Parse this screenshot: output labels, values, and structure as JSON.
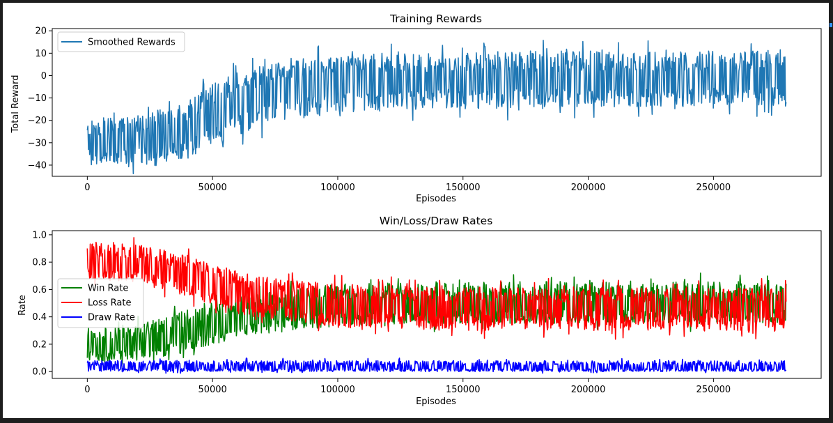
{
  "chart_data": [
    {
      "type": "line",
      "title": "Training Rewards",
      "xlabel": "Episodes",
      "ylabel": "Total Reward",
      "xlim": [
        -14000,
        293000
      ],
      "ylim": [
        -45,
        21
      ],
      "xticks": [
        0,
        50000,
        100000,
        150000,
        200000,
        250000
      ],
      "xtick_labels": [
        "0",
        "50000",
        "100000",
        "150000",
        "200000",
        "250000"
      ],
      "yticks": [
        -40,
        -30,
        -20,
        -10,
        0,
        10,
        20
      ],
      "ytick_labels": [
        "−40",
        "−30",
        "−20",
        "−10",
        "0",
        "10",
        "20"
      ],
      "grid": false,
      "legend": "upper-left",
      "series": [
        {
          "name": "Smoothed Rewards",
          "color": "#1f77b4",
          "x": [
            0,
            20000,
            40000,
            60000,
            80000,
            100000,
            120000,
            140000,
            160000,
            180000,
            200000,
            220000,
            240000,
            260000,
            279000
          ],
          "mean": [
            -30,
            -29,
            -25,
            -13,
            -6,
            -3,
            -3,
            -2.5,
            -2,
            -2,
            -2,
            -2,
            -2,
            -2,
            -2
          ],
          "band_low": [
            -40,
            -40,
            -37,
            -27,
            -20,
            -17,
            -16,
            -15,
            -15,
            -15,
            -14,
            -14,
            -14,
            -14,
            -13
          ],
          "band_high": [
            -19,
            -18,
            -10,
            2,
            7,
            9,
            11,
            10,
            11,
            11,
            11,
            11,
            11,
            11,
            11
          ]
        }
      ]
    },
    {
      "type": "line",
      "title": "Win/Loss/Draw Rates",
      "xlabel": "Episodes",
      "ylabel": "Rate",
      "xlim": [
        -14000,
        293000
      ],
      "ylim": [
        -0.05,
        1.03
      ],
      "xticks": [
        0,
        50000,
        100000,
        150000,
        200000,
        250000
      ],
      "xtick_labels": [
        "0",
        "50000",
        "100000",
        "150000",
        "200000",
        "250000"
      ],
      "yticks": [
        0.0,
        0.2,
        0.4,
        0.6,
        0.8,
        1.0
      ],
      "ytick_labels": [
        "0.0",
        "0.2",
        "0.4",
        "0.6",
        "0.8",
        "1.0"
      ],
      "grid": false,
      "legend": "center-left",
      "series": [
        {
          "name": "Win Rate",
          "color": "#008000",
          "x": [
            0,
            20000,
            40000,
            60000,
            80000,
            100000,
            120000,
            140000,
            160000,
            180000,
            200000,
            220000,
            240000,
            260000,
            279000
          ],
          "mean": [
            0.18,
            0.2,
            0.28,
            0.38,
            0.44,
            0.48,
            0.49,
            0.5,
            0.5,
            0.5,
            0.5,
            0.5,
            0.5,
            0.5,
            0.5
          ],
          "band_low": [
            0.06,
            0.08,
            0.14,
            0.25,
            0.3,
            0.33,
            0.34,
            0.35,
            0.35,
            0.35,
            0.35,
            0.35,
            0.35,
            0.35,
            0.35
          ],
          "band_high": [
            0.32,
            0.35,
            0.45,
            0.55,
            0.6,
            0.64,
            0.65,
            0.66,
            0.66,
            0.66,
            0.66,
            0.66,
            0.66,
            0.66,
            0.66
          ]
        },
        {
          "name": "Loss Rate",
          "color": "#ff0000",
          "x": [
            0,
            20000,
            40000,
            60000,
            80000,
            100000,
            120000,
            140000,
            160000,
            180000,
            200000,
            220000,
            240000,
            260000,
            279000
          ],
          "mean": [
            0.8,
            0.78,
            0.7,
            0.58,
            0.52,
            0.48,
            0.47,
            0.46,
            0.46,
            0.46,
            0.46,
            0.46,
            0.46,
            0.46,
            0.46
          ],
          "band_low": [
            0.68,
            0.65,
            0.55,
            0.42,
            0.36,
            0.32,
            0.31,
            0.3,
            0.3,
            0.3,
            0.3,
            0.3,
            0.3,
            0.3,
            0.3
          ],
          "band_high": [
            0.95,
            0.93,
            0.86,
            0.73,
            0.67,
            0.64,
            0.63,
            0.62,
            0.62,
            0.62,
            0.62,
            0.62,
            0.62,
            0.62,
            0.62
          ]
        },
        {
          "name": "Draw Rate",
          "color": "#0000ff",
          "x": [
            0,
            20000,
            40000,
            60000,
            80000,
            100000,
            120000,
            140000,
            160000,
            180000,
            200000,
            220000,
            240000,
            260000,
            279000
          ],
          "mean": [
            0.03,
            0.03,
            0.03,
            0.03,
            0.03,
            0.03,
            0.03,
            0.03,
            0.03,
            0.03,
            0.03,
            0.03,
            0.03,
            0.03,
            0.03
          ],
          "band_low": [
            0.0,
            0.0,
            0.0,
            0.0,
            0.0,
            0.0,
            0.0,
            0.0,
            0.0,
            0.0,
            0.0,
            0.0,
            0.0,
            0.0,
            0.0
          ],
          "band_high": [
            0.08,
            0.08,
            0.08,
            0.08,
            0.08,
            0.08,
            0.08,
            0.08,
            0.08,
            0.08,
            0.08,
            0.08,
            0.08,
            0.08,
            0.08
          ]
        }
      ]
    }
  ]
}
